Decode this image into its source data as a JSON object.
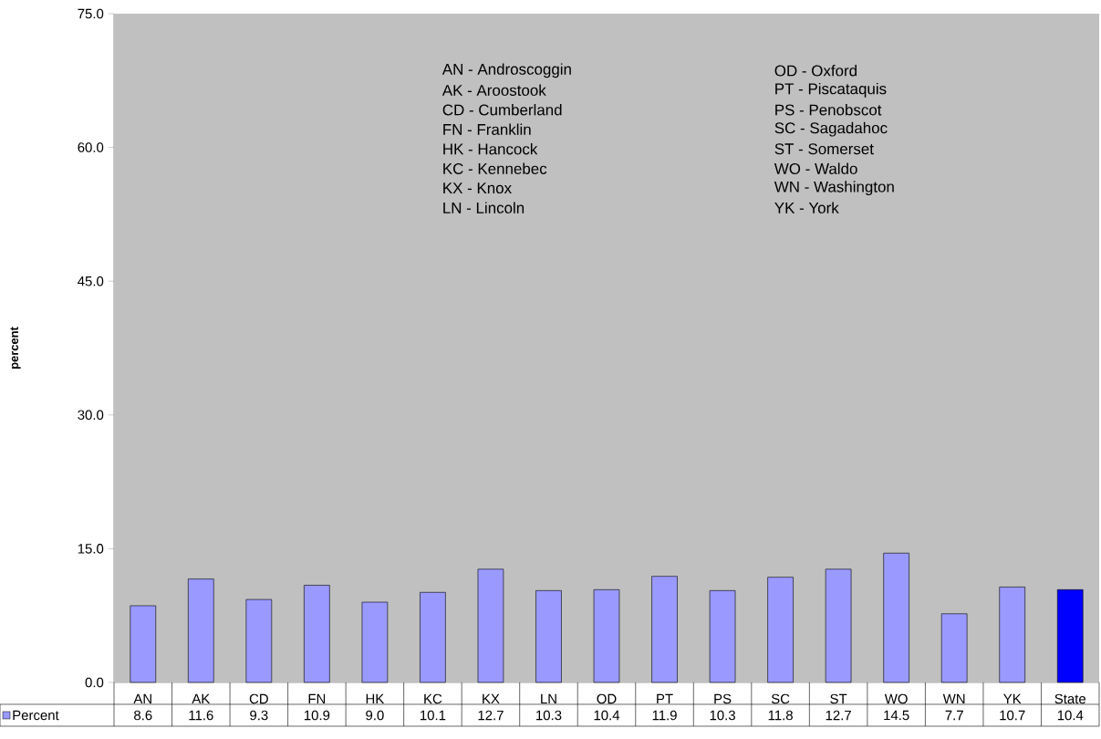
{
  "chart_data": {
    "type": "bar",
    "ylabel": "percent",
    "categories": [
      "AN",
      "AK",
      "CD",
      "FN",
      "HK",
      "KC",
      "KX",
      "LN",
      "OD",
      "PT",
      "PS",
      "SC",
      "ST",
      "WO",
      "WN",
      "YK",
      "State"
    ],
    "series": [
      {
        "name": "Percent",
        "color": "#9999ff",
        "colors": [
          "#9999ff",
          "#9999ff",
          "#9999ff",
          "#9999ff",
          "#9999ff",
          "#9999ff",
          "#9999ff",
          "#9999ff",
          "#9999ff",
          "#9999ff",
          "#9999ff",
          "#9999ff",
          "#9999ff",
          "#9999ff",
          "#9999ff",
          "#9999ff",
          "#0000ff"
        ],
        "values": [
          8.6,
          11.6,
          9.3,
          10.9,
          9.0,
          10.1,
          12.7,
          10.3,
          10.4,
          11.9,
          10.3,
          11.8,
          12.7,
          14.5,
          7.7,
          10.7,
          10.4
        ],
        "value_labels": [
          "8.6",
          "11.6",
          "9.3",
          "10.9",
          "9.0",
          "10.1",
          "12.7",
          "10.3",
          "10.4",
          "11.9",
          "10.3",
          "11.8",
          "12.7",
          "14.5",
          "7.7",
          "10.7",
          "10.4"
        ]
      }
    ],
    "ylim": [
      0,
      75
    ],
    "yticks": [
      {
        "value": 0,
        "label": "0.0"
      },
      {
        "value": 15,
        "label": "15.0"
      },
      {
        "value": 30,
        "label": "30.0"
      },
      {
        "value": 45,
        "label": "45.0"
      },
      {
        "value": 60,
        "label": "60.0"
      },
      {
        "value": 75,
        "label": "75.0"
      }
    ],
    "grid": false,
    "legend": "bottom left",
    "annotations": [
      "AN - Androscoggin",
      "AK - Aroostook",
      "CD - Cumberland",
      "FN - Franklin",
      "HK - Hancock",
      "KC - Kennebec",
      "KX - Knox",
      "LN - Lincoln",
      "OD - Oxford",
      "PT - Piscataquis",
      "PS - Penobscot",
      "SC - Sagadahoc",
      "ST - Somerset",
      "WO - Waldo",
      "WN - Washington",
      "YK - York"
    ]
  }
}
